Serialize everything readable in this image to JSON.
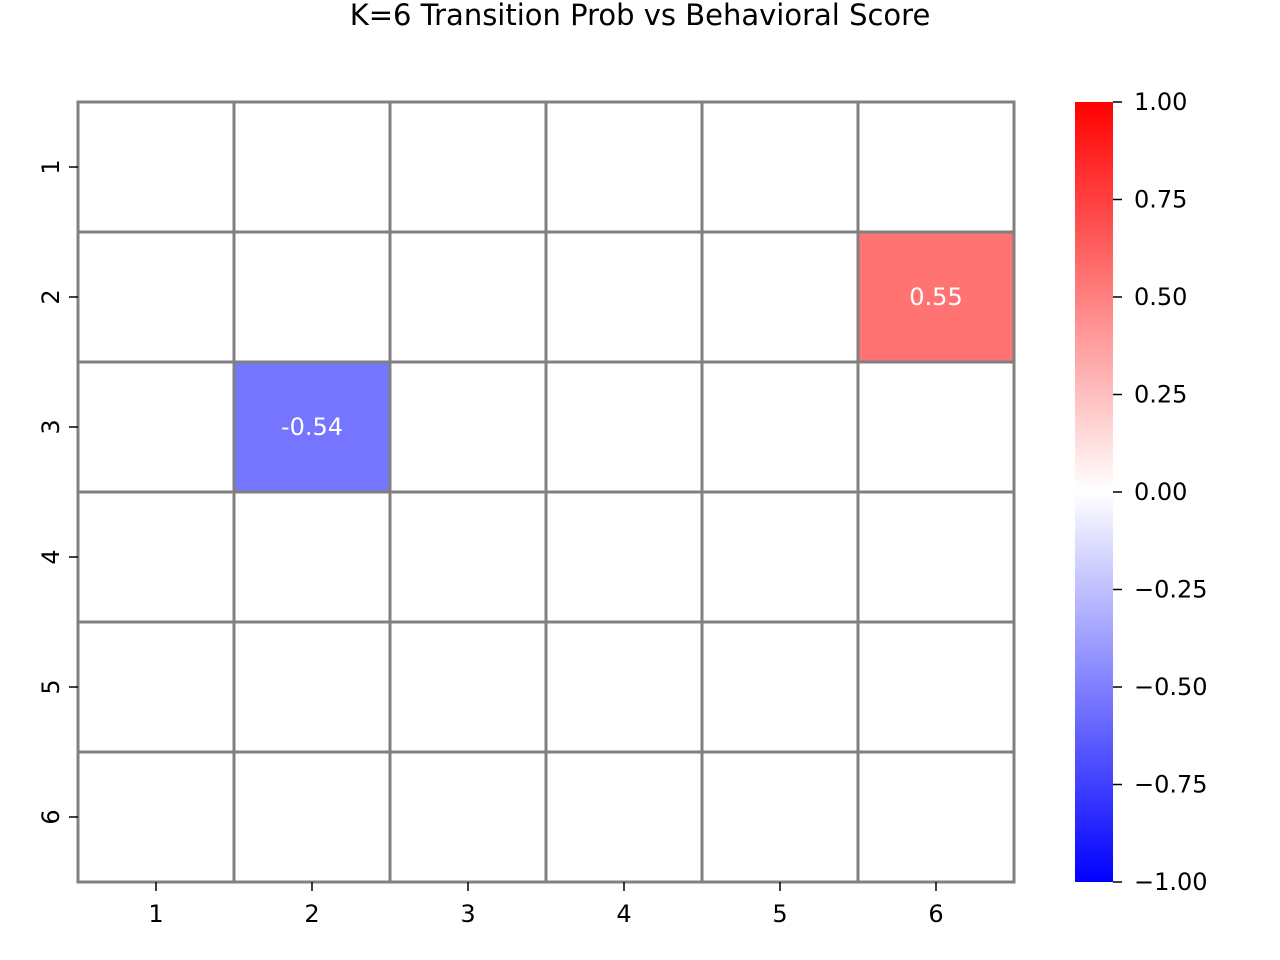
{
  "chart_data": {
    "type": "heatmap",
    "title": "K=6 Transition Prob vs Behavioral Score",
    "xlabel": "",
    "ylabel": "",
    "x_categories": [
      "1",
      "2",
      "3",
      "4",
      "5",
      "6"
    ],
    "y_categories": [
      "1",
      "2",
      "3",
      "4",
      "5",
      "6"
    ],
    "values": [
      [
        null,
        null,
        null,
        null,
        null,
        null
      ],
      [
        null,
        null,
        null,
        null,
        null,
        0.55
      ],
      [
        null,
        -0.54,
        null,
        null,
        null,
        null
      ],
      [
        null,
        null,
        null,
        null,
        null,
        null
      ],
      [
        null,
        null,
        null,
        null,
        null,
        null
      ],
      [
        null,
        null,
        null,
        null,
        null,
        null
      ]
    ],
    "annotations": [
      {
        "row": 1,
        "col": 5,
        "text": "0.55"
      },
      {
        "row": 2,
        "col": 1,
        "text": "-0.54"
      }
    ],
    "colorbar": {
      "min": -1.0,
      "max": 1.0,
      "colors": [
        "#0000ff",
        "#ffffff",
        "#ff0000"
      ],
      "ticks": [
        {
          "value": 1.0,
          "label": "1.00"
        },
        {
          "value": 0.75,
          "label": "0.75"
        },
        {
          "value": 0.5,
          "label": "0.50"
        },
        {
          "value": 0.25,
          "label": "0.25"
        },
        {
          "value": 0.0,
          "label": "0.00"
        },
        {
          "value": -0.25,
          "label": "−0.25"
        },
        {
          "value": -0.5,
          "label": "−0.50"
        },
        {
          "value": -0.75,
          "label": "−0.75"
        },
        {
          "value": -1.0,
          "label": "−1.00"
        }
      ]
    },
    "grid_line_color": "#808080"
  }
}
